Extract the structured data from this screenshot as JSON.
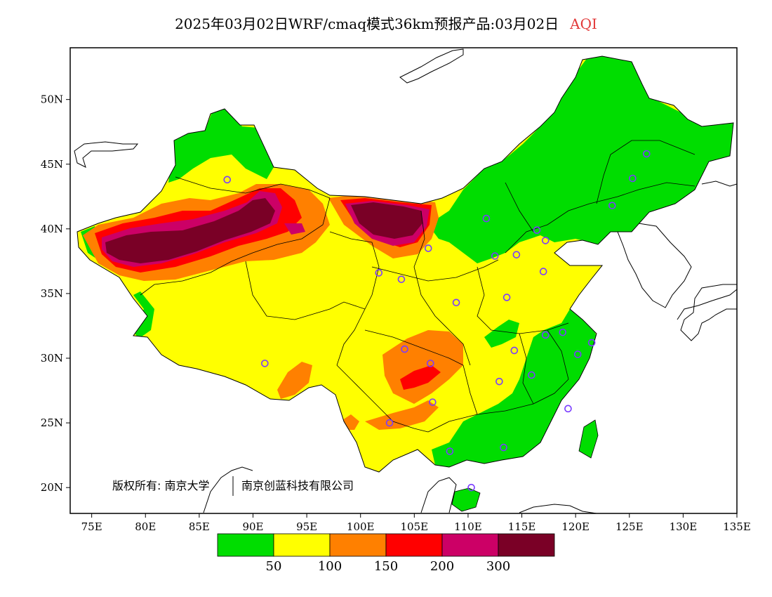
{
  "title": {
    "main": "2025年03月02日WRF/cmaq模式36km预报产品:03月02日",
    "variable": "AQI"
  },
  "axes": {
    "lon_labels": [
      "75E",
      "80E",
      "85E",
      "90E",
      "95E",
      "100E",
      "105E",
      "110E",
      "115E",
      "120E",
      "125E",
      "130E",
      "135E"
    ],
    "lat_labels": [
      "50N",
      "45N",
      "40N",
      "35N",
      "30N",
      "25N",
      "20N"
    ]
  },
  "copyright": {
    "left": "版权所有: 南京大学",
    "right": "南京创蓝科技有限公司"
  },
  "legend": {
    "colors": [
      "#00dd00",
      "#ffff00",
      "#ff8000",
      "#ff0000",
      "#cc0066",
      "#7a0026"
    ],
    "labels": [
      "50",
      "100",
      "150",
      "200",
      "300"
    ]
  },
  "colors": {
    "good": "#00dd00",
    "moderate": "#ffff00",
    "sensitive": "#ff8000",
    "unhealthy": "#ff0000",
    "very_unhealthy": "#cc0066",
    "hazardous": "#7a0026",
    "station_marker": "#7a3cff",
    "ocean": "#ffffff"
  },
  "chart_data": {
    "type": "heatmap",
    "title": "2025年03月02日WRF/cmaq模式36km预报产品:03月02日 AQI",
    "xlim": [
      73,
      135
    ],
    "ylim": [
      18,
      54
    ],
    "legend_breaks": [
      50,
      100,
      150,
      200,
      300
    ],
    "regions": [
      {
        "category": "hazardous",
        "lon": [
          76,
          90
        ],
        "lat": [
          36.5,
          41
        ],
        "note": ""
      },
      {
        "category": "hazardous",
        "lon": [
          101,
          107
        ],
        "lat": [
          39,
          42
        ],
        "note": ""
      }
    ],
    "stations": [
      [
        87.6,
        43.8
      ],
      [
        91.1,
        29.6
      ],
      [
        101.7,
        36.6
      ],
      [
        103.8,
        36.1
      ],
      [
        106.3,
        38.5
      ],
      [
        104.1,
        30.7
      ],
      [
        106.5,
        29.6
      ],
      [
        106.7,
        26.6
      ],
      [
        102.7,
        25.0
      ],
      [
        108.3,
        22.8
      ],
      [
        110.3,
        20.0
      ],
      [
        113.3,
        23.1
      ],
      [
        112.9,
        28.2
      ],
      [
        114.3,
        30.6
      ],
      [
        115.9,
        28.7
      ],
      [
        119.3,
        26.1
      ],
      [
        120.2,
        30.3
      ],
      [
        121.5,
        31.2
      ],
      [
        118.8,
        32.0
      ],
      [
        117.2,
        31.8
      ],
      [
        113.6,
        34.7
      ],
      [
        108.9,
        34.3
      ],
      [
        112.5,
        37.9
      ],
      [
        114.5,
        38.0
      ],
      [
        116.4,
        39.9
      ],
      [
        117.2,
        39.1
      ],
      [
        117.0,
        36.7
      ],
      [
        111.7,
        40.8
      ],
      [
        123.4,
        41.8
      ],
      [
        125.3,
        43.9
      ],
      [
        126.6,
        45.8
      ]
    ]
  }
}
